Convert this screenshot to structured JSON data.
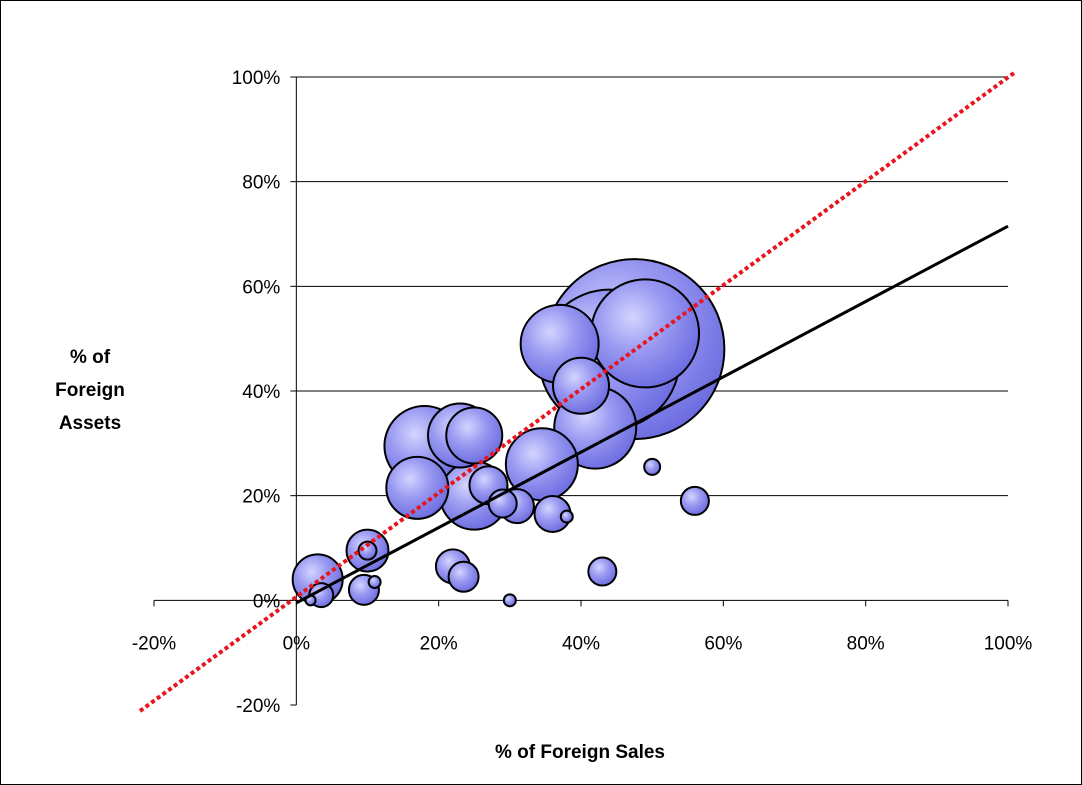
{
  "chart_data": {
    "type": "scatter",
    "xlabel": "% of Foreign Sales",
    "ylabel": [
      "% of",
      "Foreign",
      "Assets"
    ],
    "xlim": [
      -0.2,
      1.0
    ],
    "ylim": [
      -0.2,
      1.0
    ],
    "x_ticks": [
      -0.2,
      0,
      0.2,
      0.4,
      0.6,
      0.8,
      1.0
    ],
    "x_tick_labels": [
      "-20%",
      "0%",
      "20%",
      "40%",
      "60%",
      "80%",
      "100%"
    ],
    "y_ticks": [
      -0.2,
      0,
      0.2,
      0.4,
      0.6,
      0.8,
      1.0
    ],
    "y_tick_labels": [
      "-20%",
      "0%",
      "20%",
      "40%",
      "60%",
      "80%",
      "100%"
    ],
    "grid": "horizontal",
    "bubble_color": "#7b7bea",
    "bubble_edge": "#000000",
    "diagonal_color": "#e8141e",
    "trend_color": "#000000",
    "diagonal_line": {
      "x": [
        -0.2,
        1.0
      ],
      "y": [
        -0.2,
        1.0
      ]
    },
    "trend_line": {
      "x": [
        0.0,
        1.0
      ],
      "y": [
        -0.005,
        0.715
      ]
    },
    "points": [
      {
        "x": 0.475,
        "y": 0.48,
        "size": 90
      },
      {
        "x": 0.44,
        "y": 0.46,
        "size": 70
      },
      {
        "x": 0.49,
        "y": 0.51,
        "size": 54
      },
      {
        "x": 0.42,
        "y": 0.33,
        "size": 41
      },
      {
        "x": 0.37,
        "y": 0.49,
        "size": 39
      },
      {
        "x": 0.18,
        "y": 0.295,
        "size": 40
      },
      {
        "x": 0.25,
        "y": 0.2,
        "size": 34
      },
      {
        "x": 0.23,
        "y": 0.315,
        "size": 32
      },
      {
        "x": 0.25,
        "y": 0.315,
        "size": 28
      },
      {
        "x": 0.345,
        "y": 0.26,
        "size": 36
      },
      {
        "x": 0.17,
        "y": 0.215,
        "size": 31
      },
      {
        "x": 0.4,
        "y": 0.41,
        "size": 28
      },
      {
        "x": 0.27,
        "y": 0.22,
        "size": 19
      },
      {
        "x": 0.03,
        "y": 0.04,
        "size": 25
      },
      {
        "x": 0.1,
        "y": 0.095,
        "size": 21
      },
      {
        "x": 0.36,
        "y": 0.165,
        "size": 18
      },
      {
        "x": 0.31,
        "y": 0.18,
        "size": 17
      },
      {
        "x": 0.29,
        "y": 0.185,
        "size": 14
      },
      {
        "x": 0.22,
        "y": 0.065,
        "size": 17
      },
      {
        "x": 0.235,
        "y": 0.045,
        "size": 15
      },
      {
        "x": 0.095,
        "y": 0.02,
        "size": 15
      },
      {
        "x": 0.56,
        "y": 0.19,
        "size": 14
      },
      {
        "x": 0.43,
        "y": 0.055,
        "size": 14
      },
      {
        "x": 0.035,
        "y": 0.01,
        "size": 12
      },
      {
        "x": 0.1,
        "y": 0.095,
        "size": 9
      },
      {
        "x": 0.5,
        "y": 0.255,
        "size": 8
      },
      {
        "x": 0.38,
        "y": 0.16,
        "size": 6
      },
      {
        "x": 0.11,
        "y": 0.035,
        "size": 6
      },
      {
        "x": 0.3,
        "y": 0.0,
        "size": 6
      },
      {
        "x": 0.02,
        "y": 0.0,
        "size": 5
      }
    ]
  }
}
